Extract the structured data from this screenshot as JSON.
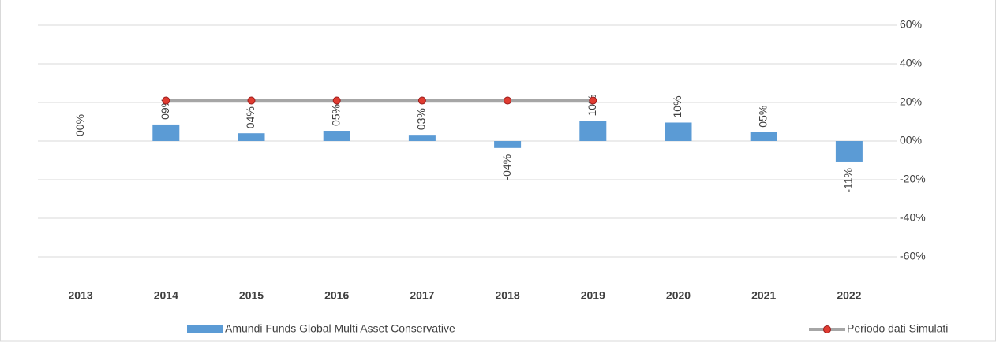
{
  "chart_data": {
    "type": "bar",
    "categories": [
      "2013",
      "2014",
      "2015",
      "2016",
      "2017",
      "2018",
      "2019",
      "2020",
      "2021",
      "2022"
    ],
    "series": [
      {
        "name": "Amundi Funds Global Multi Asset Conservative",
        "color": "#5b9bd5",
        "type": "bar",
        "values": [
          0,
          8.6,
          4,
          5.3,
          3.2,
          -3.6,
          10.4,
          9.6,
          4.6,
          -10.6
        ],
        "value_labels": [
          "00%",
          "09%",
          "04%",
          "05%",
          "03%",
          "-04%",
          "10%",
          "10%",
          "05%",
          "-11%"
        ]
      },
      {
        "name": "Periodo dati Simulati",
        "color": "#a6a6a6",
        "marker_color": "#e03c31",
        "type": "line",
        "values": [
          null,
          21,
          21,
          21,
          21,
          21,
          21,
          null,
          null,
          null
        ]
      }
    ],
    "ylim": [
      -70,
      65
    ],
    "yticks": [
      {
        "value": 60,
        "label": "60%"
      },
      {
        "value": 40,
        "label": "40%"
      },
      {
        "value": 20,
        "label": "20%"
      },
      {
        "value": 0,
        "label": "00%"
      },
      {
        "value": -20,
        "label": "-20%"
      },
      {
        "value": -40,
        "label": "-40%"
      },
      {
        "value": -60,
        "label": "-60%"
      }
    ],
    "grid": true,
    "legend": "bottom"
  }
}
